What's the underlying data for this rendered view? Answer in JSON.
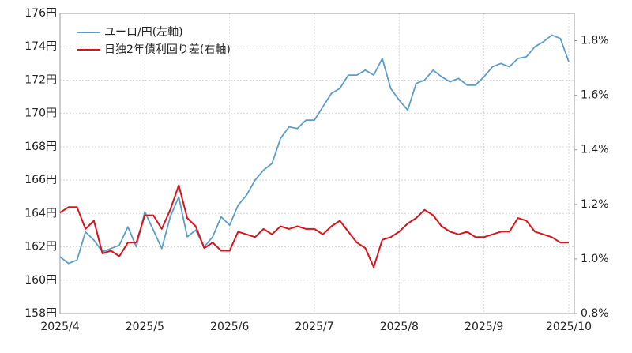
{
  "chart_data": {
    "type": "line",
    "categories": [
      "2025/4",
      null,
      null,
      null,
      null,
      null,
      null,
      null,
      null,
      null,
      "2025/5",
      null,
      null,
      null,
      null,
      null,
      null,
      null,
      null,
      null,
      "2025/6",
      null,
      null,
      null,
      null,
      null,
      null,
      null,
      null,
      null,
      "2025/7",
      null,
      null,
      null,
      null,
      null,
      null,
      null,
      null,
      null,
      "2025/8",
      null,
      null,
      null,
      null,
      null,
      null,
      null,
      null,
      null,
      "2025/9",
      null,
      null,
      null,
      null,
      null,
      null,
      null,
      null,
      null,
      "2025/10"
    ],
    "series": [
      {
        "name": "ユーロ/円(左軸)",
        "color": "#5a9ec9",
        "axis": "y",
        "values": [
          161.4,
          161.0,
          161.2,
          162.9,
          162.4,
          161.7,
          161.9,
          162.1,
          163.2,
          162.0,
          164.1,
          163.0,
          161.9,
          163.8,
          165.0,
          162.6,
          163.0,
          162.0,
          162.6,
          163.8,
          163.3,
          164.5,
          165.1,
          166.0,
          166.6,
          167.0,
          168.5,
          169.2,
          169.1,
          169.6,
          169.6,
          170.4,
          171.2,
          171.5,
          172.3,
          172.3,
          172.6,
          172.3,
          173.3,
          171.5,
          170.8,
          170.2,
          171.8,
          172.0,
          172.6,
          172.2,
          171.9,
          172.1,
          171.7,
          171.7,
          172.2,
          172.8,
          173.0,
          172.8,
          173.3,
          173.4,
          174.0,
          174.3,
          174.7,
          174.5,
          173.1
        ]
      },
      {
        "name": "日独2年債利回り差(右軸)",
        "color": "#d9141b",
        "axis": "y2",
        "values": [
          1.17,
          1.19,
          1.19,
          1.11,
          1.14,
          1.02,
          1.03,
          1.01,
          1.06,
          1.06,
          1.16,
          1.16,
          1.11,
          1.18,
          1.27,
          1.15,
          1.12,
          1.04,
          1.06,
          1.03,
          1.03,
          1.1,
          1.09,
          1.08,
          1.11,
          1.09,
          1.12,
          1.11,
          1.12,
          1.11,
          1.11,
          1.09,
          1.12,
          1.14,
          1.1,
          1.06,
          1.04,
          0.97,
          1.07,
          1.08,
          1.1,
          1.13,
          1.15,
          1.18,
          1.16,
          1.12,
          1.1,
          1.09,
          1.1,
          1.08,
          1.08,
          1.09,
          1.1,
          1.1,
          1.15,
          1.14,
          1.1,
          1.09,
          1.08,
          1.06,
          1.06
        ]
      }
    ],
    "ylim": [
      158,
      176
    ],
    "yticks": [
      {
        "value": 158,
        "label": "158円"
      },
      {
        "value": 160,
        "label": "160円"
      },
      {
        "value": 162,
        "label": "162円"
      },
      {
        "value": 164,
        "label": "164円"
      },
      {
        "value": 166,
        "label": "166円"
      },
      {
        "value": 168,
        "label": "168円"
      },
      {
        "value": 170,
        "label": "170円"
      },
      {
        "value": 172,
        "label": "172円"
      },
      {
        "value": 174,
        "label": "174円"
      },
      {
        "value": 176,
        "label": "176円"
      }
    ],
    "y2lim": [
      0.8,
      1.9
    ],
    "y2ticks": [
      {
        "value": 0.8,
        "label": "0.8%"
      },
      {
        "value": 1.0,
        "label": "1.0%"
      },
      {
        "value": 1.2,
        "label": "1.2%"
      },
      {
        "value": 1.4,
        "label": "1.4%"
      },
      {
        "value": 1.6,
        "label": "1.6%"
      },
      {
        "value": 1.8,
        "label": "1.8%"
      }
    ],
    "grid": true
  }
}
